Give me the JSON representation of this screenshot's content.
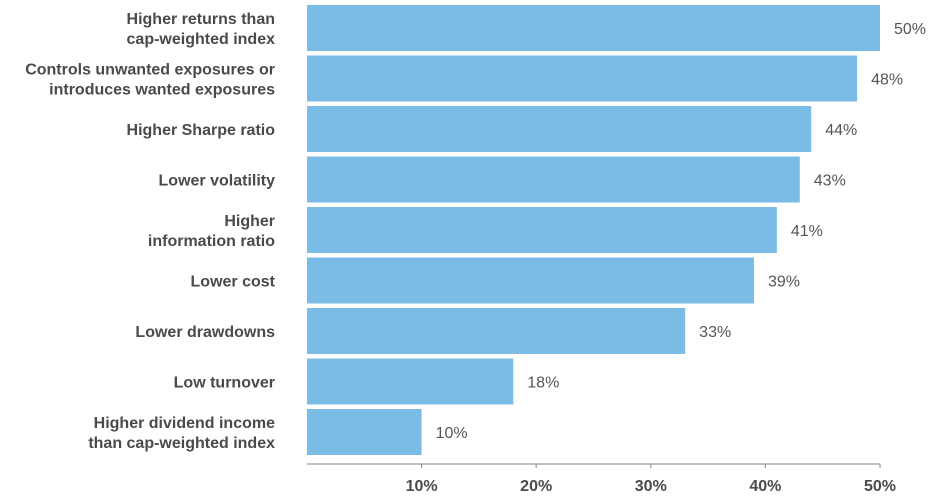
{
  "chart_data": {
    "type": "bar",
    "orientation": "horizontal",
    "categories": [
      [
        "Higher returns than",
        "cap-weighted index"
      ],
      [
        "Controls unwanted exposures or",
        "introduces wanted exposures"
      ],
      [
        "Higher Sharpe ratio"
      ],
      [
        "Lower volatility"
      ],
      [
        "Higher",
        "information ratio"
      ],
      [
        "Lower cost"
      ],
      [
        "Lower drawdowns"
      ],
      [
        "Low turnover"
      ],
      [
        "Higher dividend income",
        "than cap-weighted index"
      ]
    ],
    "values": [
      50,
      48,
      44,
      43,
      41,
      39,
      33,
      18,
      10
    ],
    "value_labels": [
      "50%",
      "48%",
      "44%",
      "43%",
      "41%",
      "39%",
      "33%",
      "18%",
      "10%"
    ],
    "x_ticks": [
      10,
      20,
      30,
      40,
      50
    ],
    "x_tick_labels": [
      "10%",
      "20%",
      "30%",
      "40%",
      "50%"
    ],
    "xlim": [
      0,
      50
    ],
    "bar_color": "#7bbce7",
    "axis_color": "#9a9a9a",
    "grid": false,
    "legend": "none"
  }
}
